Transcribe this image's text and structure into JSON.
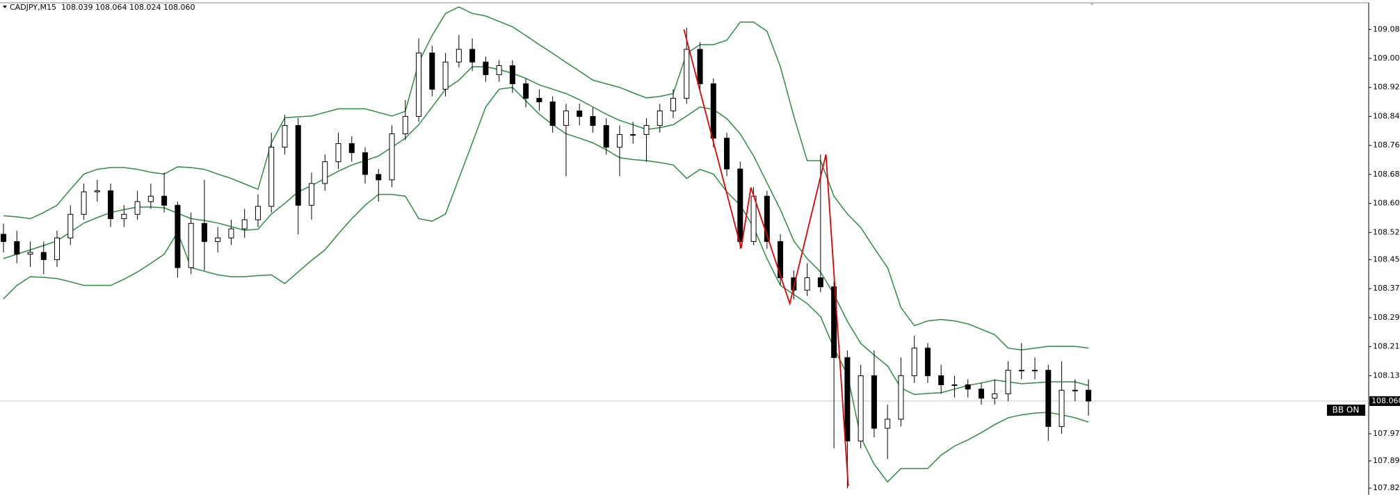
{
  "chart_data": {
    "type": "candlestick",
    "header": {
      "symbol": "CADJPY,M15",
      "ohlc": "108.039 108.064 108.024 108.060"
    },
    "ylim": [
      107.801,
      109.166
    ],
    "yticks": [
      109.085,
      109.005,
      108.925,
      108.845,
      108.765,
      108.685,
      108.605,
      108.525,
      {
        "value": 108.45,
        "label": "108.450"
      },
      {
        "value": 108.37,
        "label": "108.370"
      },
      {
        "value": 108.29,
        "label": "108.290"
      },
      {
        "value": 108.21,
        "label": "108.210"
      },
      {
        "value": 108.13,
        "label": "108.130"
      },
      {
        "value": 107.97,
        "label": "107.970"
      },
      107.895,
      {
        "value": 107.82,
        "label": "107.820"
      }
    ],
    "up_color": "#ffffff",
    "down_color": "#000000",
    "open": [
      108.52,
      108.5,
      108.465,
      108.47,
      108.45,
      108.51,
      108.575,
      108.637,
      108.64,
      108.563,
      108.575,
      108.61,
      108.625,
      108.6,
      108.428,
      108.55,
      108.5,
      108.51,
      108.535,
      108.56,
      108.597,
      108.76,
      108.82,
      108.6,
      108.66,
      108.72,
      108.77,
      108.745,
      108.685,
      108.67,
      108.797,
      108.845,
      109.02,
      108.92,
      108.995,
      109.03,
      108.995,
      108.96,
      108.985,
      108.935,
      108.895,
      108.885,
      108.82,
      108.86,
      108.845,
      108.82,
      108.76,
      108.795,
      108.795,
      108.82,
      108.86,
      108.895,
      109.03,
      108.935,
      108.785,
      108.7,
      108.5,
      108.625,
      108.5,
      108.4,
      108.366,
      108.4,
      108.375,
      108.18,
      107.95,
      108.13,
      107.985,
      108.01,
      108.13,
      108.206,
      108.13,
      108.105,
      108.105,
      108.093,
      108.068,
      108.08,
      108.145,
      108.145,
      108.145,
      107.99,
      108.09,
      108.09
    ],
    "high": [
      108.55,
      108.53,
      108.5,
      108.5,
      108.53,
      108.6,
      108.66,
      108.67,
      108.66,
      108.6,
      108.64,
      108.66,
      108.69,
      108.61,
      108.58,
      108.67,
      108.54,
      108.56,
      108.59,
      108.63,
      108.8,
      108.85,
      108.84,
      108.69,
      108.74,
      108.8,
      108.79,
      108.76,
      108.7,
      108.82,
      108.89,
      109.06,
      109.04,
      109.02,
      109.07,
      109.06,
      109.01,
      109.0,
      109.0,
      108.95,
      108.92,
      108.9,
      108.88,
      108.88,
      108.87,
      108.84,
      108.82,
      108.83,
      108.84,
      108.88,
      108.92,
      109.09,
      109.05,
      108.95,
      108.8,
      108.72,
      108.65,
      108.64,
      108.52,
      108.42,
      108.44,
      108.74,
      108.39,
      108.2,
      108.16,
      108.2,
      108.05,
      108.18,
      108.24,
      108.22,
      108.16,
      108.13,
      108.12,
      108.11,
      108.12,
      108.17,
      108.22,
      108.18,
      108.16,
      108.17,
      108.12,
      108.12
    ],
    "low": [
      108.47,
      108.44,
      108.43,
      108.41,
      108.43,
      108.49,
      108.56,
      108.61,
      108.54,
      108.54,
      108.56,
      108.59,
      108.58,
      108.4,
      108.41,
      108.42,
      108.47,
      108.49,
      108.51,
      108.54,
      108.58,
      108.74,
      108.52,
      108.56,
      108.64,
      108.7,
      108.72,
      108.66,
      108.61,
      108.65,
      108.78,
      108.83,
      108.9,
      108.9,
      108.98,
      108.97,
      108.94,
      108.94,
      108.91,
      108.87,
      108.86,
      108.8,
      108.68,
      108.82,
      108.8,
      108.74,
      108.68,
      108.77,
      108.72,
      108.8,
      108.84,
      108.88,
      108.92,
      108.76,
      108.68,
      108.48,
      108.49,
      108.48,
      108.38,
      108.34,
      108.35,
      108.36,
      107.93,
      107.82,
      107.93,
      107.96,
      107.9,
      107.99,
      108.11,
      108.11,
      108.08,
      108.07,
      108.07,
      108.05,
      108.05,
      108.06,
      108.12,
      108.12,
      107.95,
      107.97,
      108.06,
      108.02
    ],
    "close": [
      108.5,
      108.465,
      108.47,
      108.45,
      108.51,
      108.575,
      108.637,
      108.64,
      108.563,
      108.575,
      108.61,
      108.625,
      108.6,
      108.428,
      108.55,
      108.5,
      108.51,
      108.535,
      108.56,
      108.597,
      108.76,
      108.82,
      108.6,
      108.66,
      108.72,
      108.77,
      108.745,
      108.685,
      108.67,
      108.797,
      108.845,
      109.02,
      108.92,
      108.995,
      109.03,
      108.995,
      108.96,
      108.985,
      108.935,
      108.895,
      108.885,
      108.82,
      108.86,
      108.845,
      108.82,
      108.76,
      108.795,
      108.795,
      108.82,
      108.86,
      108.895,
      109.03,
      108.935,
      108.785,
      108.7,
      108.5,
      108.625,
      108.5,
      108.4,
      108.366,
      108.4,
      108.375,
      108.18,
      107.95,
      108.13,
      107.985,
      108.01,
      108.13,
      108.206,
      108.13,
      108.105,
      108.105,
      108.093,
      108.068,
      108.08,
      108.145,
      108.145,
      108.145,
      107.99,
      108.09,
      108.09,
      108.06
    ],
    "bands": [
      {
        "color": "#2f8a45",
        "values": [
          108.571,
          108.568,
          108.563,
          108.58,
          108.6,
          108.644,
          108.686,
          108.699,
          108.704,
          108.704,
          108.699,
          108.691,
          108.686,
          108.706,
          108.704,
          108.699,
          108.686,
          108.674,
          108.659,
          108.644,
          108.772,
          108.841,
          108.844,
          108.846,
          108.856,
          108.866,
          108.866,
          108.866,
          108.856,
          108.846,
          108.859,
          108.994,
          109.068,
          109.129,
          109.147,
          109.129,
          109.122,
          109.107,
          109.092,
          109.068,
          109.043,
          109.019,
          108.994,
          108.97,
          108.945,
          108.935,
          108.925,
          108.91,
          108.896,
          108.9,
          108.908,
          109.019,
          109.043,
          109.043,
          109.055,
          109.105,
          109.105,
          109.08,
          108.982,
          108.846,
          108.723,
          108.723,
          108.625,
          108.576,
          108.539,
          108.482,
          108.428,
          108.318,
          108.268,
          108.281,
          108.285,
          108.281,
          108.273,
          108.258,
          108.243,
          108.206,
          108.201,
          108.206,
          108.211,
          108.211,
          108.211,
          108.206
        ]
      },
      {
        "color": "#2f8a45",
        "values": [
          108.453,
          108.465,
          108.477,
          108.489,
          108.502,
          108.526,
          108.551,
          108.566,
          108.58,
          108.588,
          108.595,
          108.595,
          108.593,
          108.578,
          108.563,
          108.558,
          108.551,
          108.541,
          108.531,
          108.534,
          108.576,
          108.605,
          108.637,
          108.654,
          108.674,
          108.694,
          108.711,
          108.723,
          108.736,
          108.76,
          108.785,
          108.822,
          108.871,
          108.92,
          108.945,
          108.982,
          108.982,
          108.974,
          108.964,
          108.95,
          108.932,
          108.92,
          108.908,
          108.891,
          108.871,
          108.851,
          108.834,
          108.822,
          108.809,
          108.814,
          108.822,
          108.846,
          108.871,
          108.864,
          108.839,
          108.797,
          108.736,
          108.662,
          108.588,
          108.502,
          108.453,
          108.416,
          108.354,
          108.28,
          108.219,
          108.187,
          108.157,
          108.096,
          108.078,
          108.081,
          108.083,
          108.093,
          108.103,
          108.11,
          108.118,
          108.113,
          108.108,
          108.11,
          108.113,
          108.113,
          108.113,
          108.103
        ]
      },
      {
        "color": "#2f8a45",
        "values": [
          108.342,
          108.379,
          108.403,
          108.401,
          108.398,
          108.389,
          108.379,
          108.379,
          108.379,
          108.396,
          108.416,
          108.44,
          108.465,
          108.526,
          108.428,
          108.418,
          108.408,
          108.403,
          108.403,
          108.406,
          108.408,
          108.384,
          108.416,
          108.448,
          108.477,
          108.521,
          108.563,
          108.6,
          108.63,
          108.63,
          108.625,
          108.563,
          108.556,
          108.576,
          108.674,
          108.772,
          108.871,
          108.92,
          108.925,
          108.888,
          108.851,
          108.822,
          108.797,
          108.785,
          108.772,
          108.753,
          108.731,
          108.726,
          108.723,
          108.718,
          108.711,
          108.674,
          108.699,
          108.686,
          108.637,
          108.6,
          108.539,
          108.453,
          108.379,
          108.354,
          108.329,
          108.293,
          108.206,
          108.133,
          107.96,
          107.886,
          107.837,
          107.874,
          107.874,
          107.874,
          107.911,
          107.936,
          107.953,
          107.973,
          107.995,
          108.014,
          108.022,
          108.027,
          108.029,
          108.022,
          108.014,
          108.002
        ]
      }
    ],
    "zigzag": {
      "color": "#e00000",
      "x": [
        50.8,
        55.07,
        55.8,
        58.7,
        61.4,
        63.07
      ],
      "values": [
        109.085,
        108.482,
        108.649,
        108.329,
        108.74,
        107.825
      ]
    },
    "current_price": {
      "value": 108.06,
      "label": "108.060"
    },
    "indicator_label": "BB ON"
  }
}
